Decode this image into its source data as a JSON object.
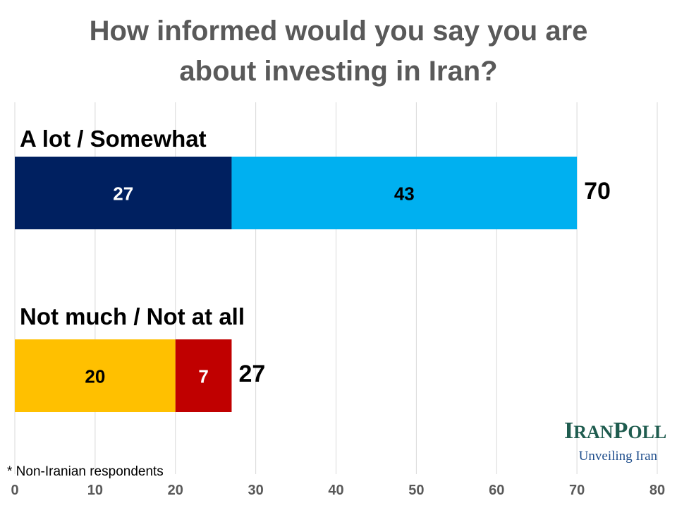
{
  "chart_data": {
    "type": "bar",
    "orientation": "horizontal",
    "stacked": true,
    "title_lines": [
      "How informed would you say you are",
      "about investing in Iran?"
    ],
    "categories": [
      "A lot / Somewhat",
      "Not much / Not at all"
    ],
    "bars": [
      {
        "category": "A lot / Somewhat",
        "total": 70,
        "segments": [
          {
            "value": 27,
            "color": "#002060",
            "label_color": "#ffffff"
          },
          {
            "value": 43,
            "color": "#00b0f0",
            "label_color": "#000000"
          }
        ]
      },
      {
        "category": "Not much / Not at all",
        "total": 27,
        "segments": [
          {
            "value": 20,
            "color": "#ffc000",
            "label_color": "#000000"
          },
          {
            "value": 7,
            "color": "#c00000",
            "label_color": "#ffffff"
          }
        ]
      }
    ],
    "xlim": [
      0,
      80
    ],
    "xticks": [
      0,
      10,
      20,
      30,
      40,
      50,
      60,
      70,
      80
    ],
    "grid": true,
    "footnote": "* Non-Iranian respondents"
  },
  "logo": {
    "initial_1": "I",
    "rest_1": "RAN",
    "initial_2": "P",
    "rest_2": "OLL",
    "slogan": "Unveiling Iran",
    "color": "#1f5c4f",
    "slogan_color": "#1f4e8c"
  }
}
